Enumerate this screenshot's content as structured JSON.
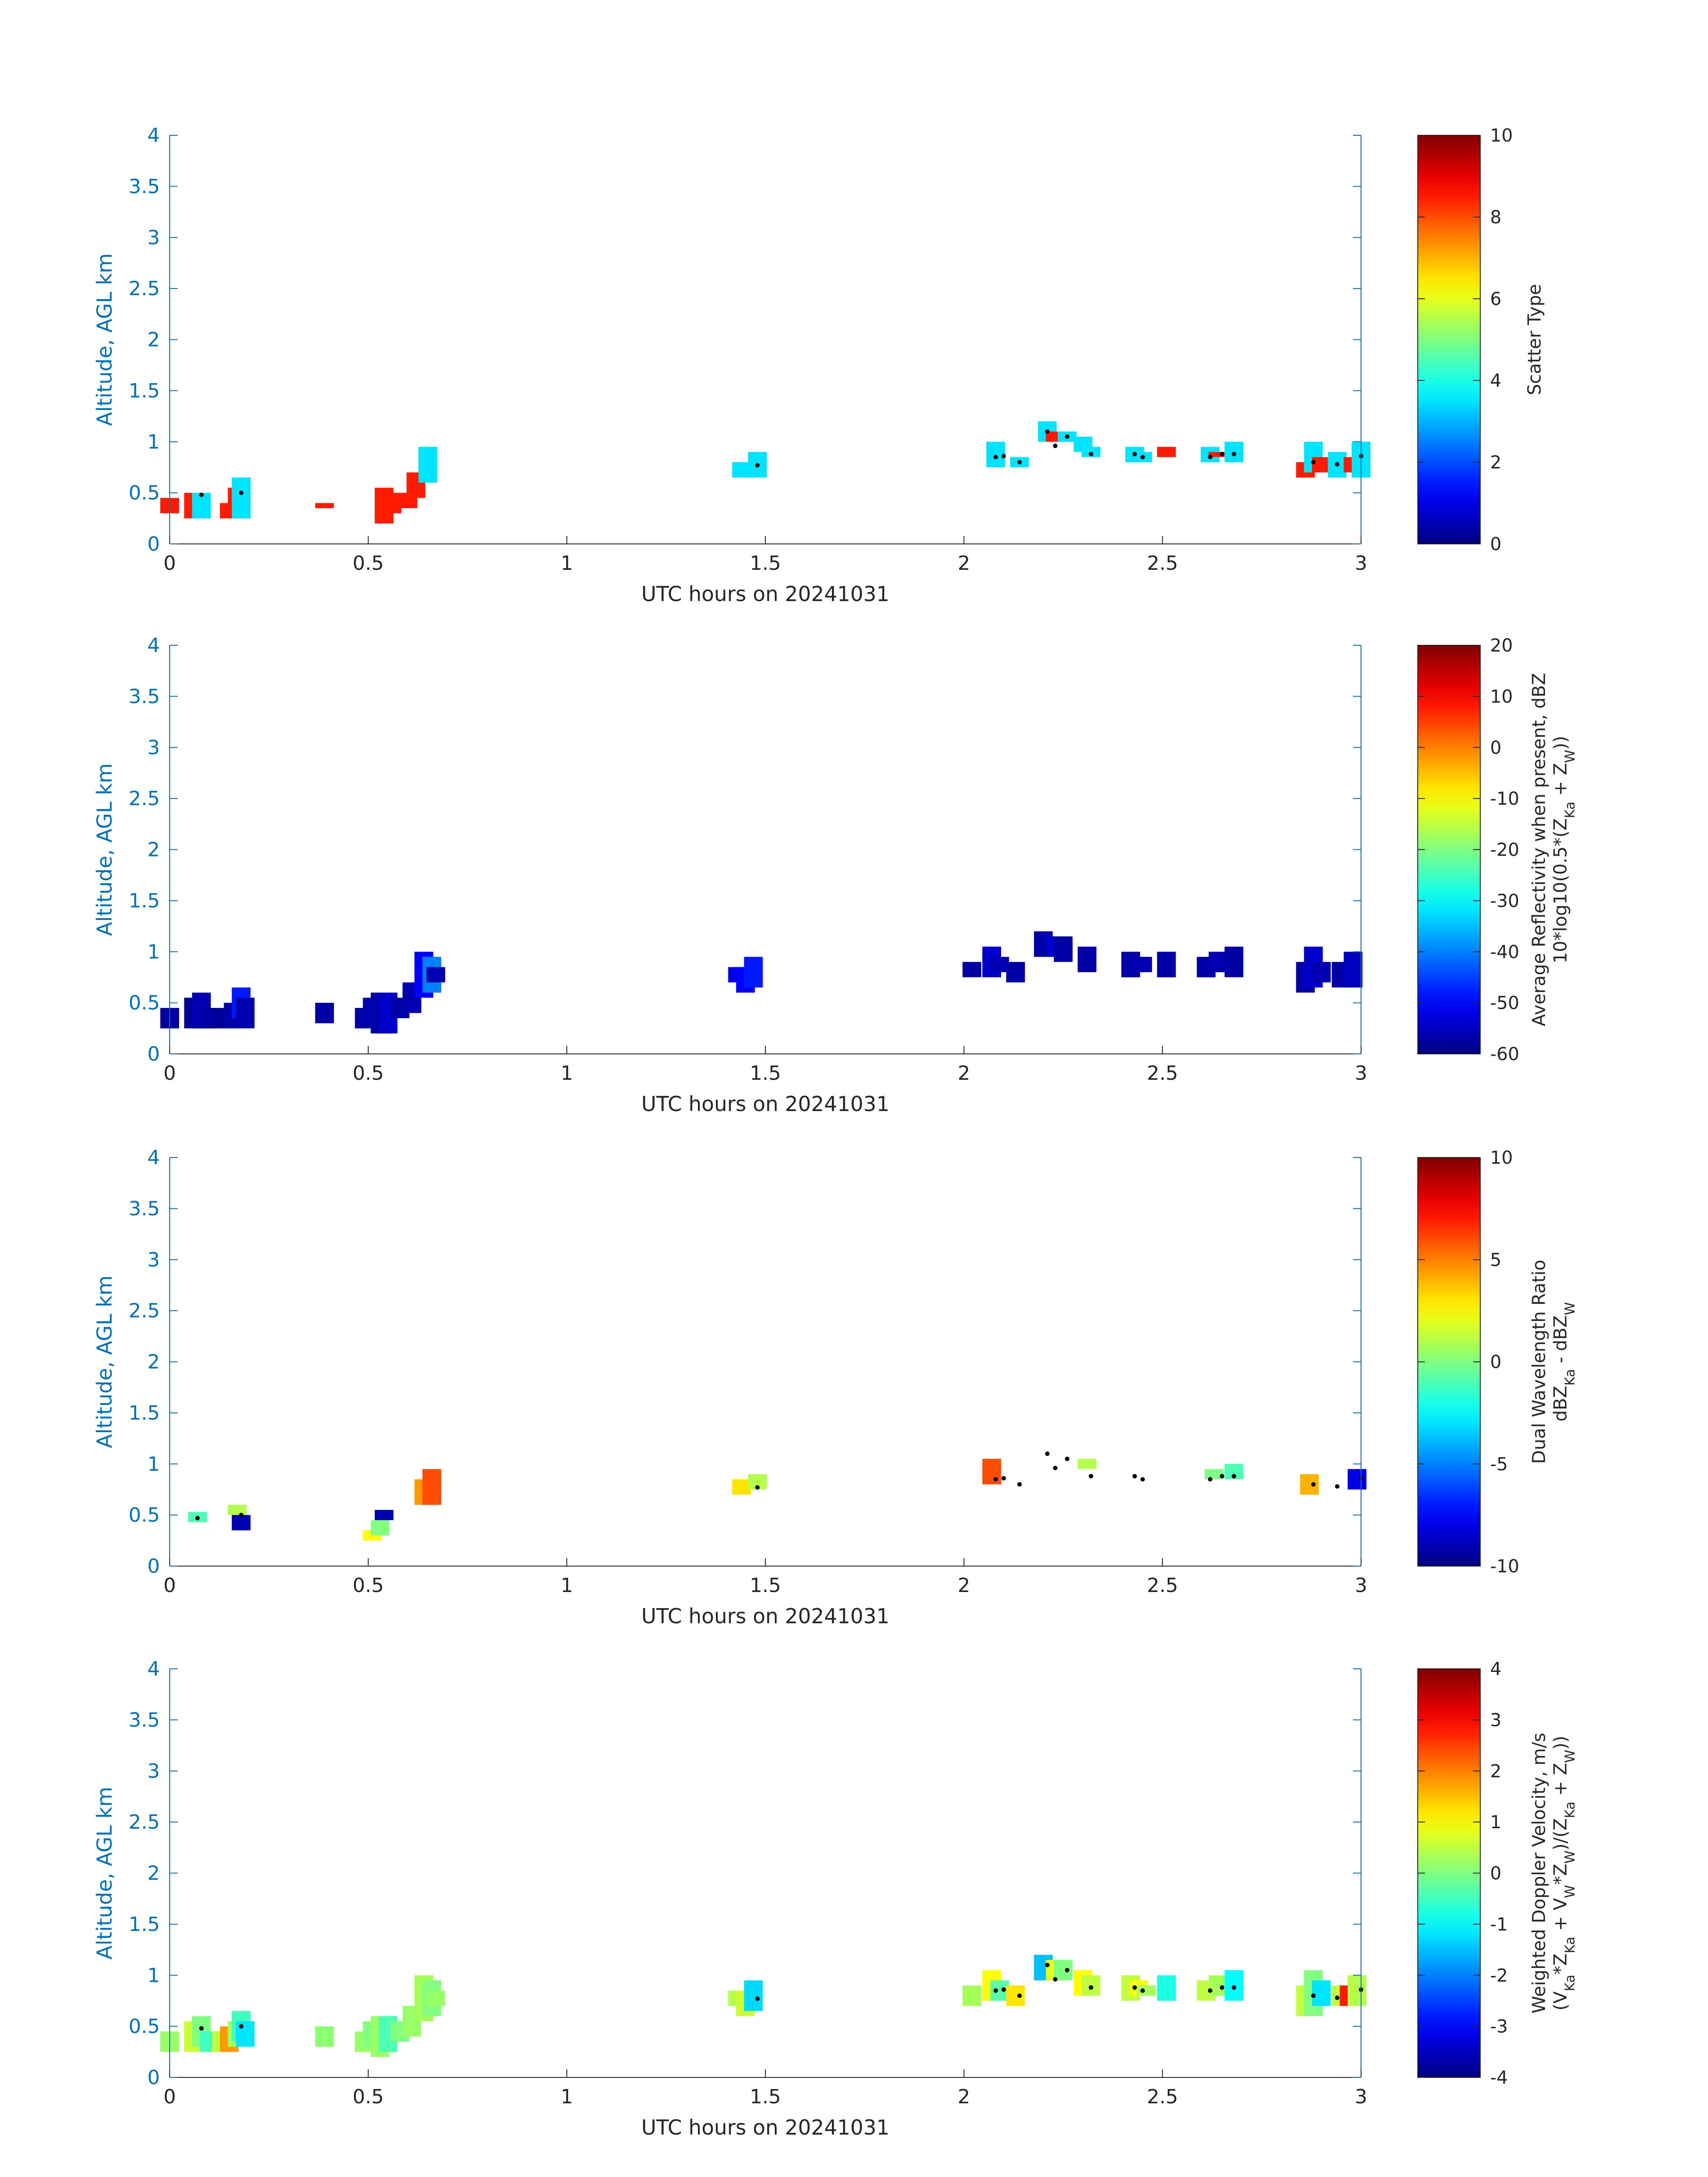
{
  "chart_data": [
    {
      "type": "heatmap",
      "xlabel": "UTC hours on 20241031",
      "ylabel": "Altitude, AGL km",
      "xlim": [
        0,
        3
      ],
      "ylim": [
        0,
        4
      ],
      "xticks": [
        "0",
        "0.5",
        "1",
        "1.5",
        "2",
        "2.5",
        "3"
      ],
      "yticks": [
        "0",
        "0.5",
        "1",
        "1.5",
        "2",
        "2.5",
        "3",
        "3.5",
        "4"
      ],
      "colorbar": {
        "label_lines": [
          "Scatter Type"
        ],
        "range": [
          0,
          10
        ],
        "ticks": [
          "0",
          "2",
          "4",
          "6",
          "8",
          "10"
        ],
        "colormap": "jet"
      },
      "cells": [
        [
          0.0,
          0.3,
          0.4,
          8.5
        ],
        [
          0.0,
          0.4,
          0.45,
          8.5
        ],
        [
          0.06,
          0.25,
          0.5,
          8.5
        ],
        [
          0.08,
          0.25,
          0.5,
          3.5
        ],
        [
          0.15,
          0.25,
          0.4,
          8.5
        ],
        [
          0.17,
          0.25,
          0.55,
          8.5
        ],
        [
          0.18,
          0.25,
          0.65,
          3.5
        ],
        [
          0.39,
          0.35,
          0.4,
          8.5
        ],
        [
          0.54,
          0.2,
          0.55,
          8.5
        ],
        [
          0.56,
          0.3,
          0.5,
          8.5
        ],
        [
          0.6,
          0.35,
          0.5,
          8.5
        ],
        [
          0.62,
          0.45,
          0.7,
          8.5
        ],
        [
          0.65,
          0.6,
          0.95,
          3.5
        ],
        [
          1.44,
          0.65,
          0.8,
          3.5
        ],
        [
          1.48,
          0.65,
          0.9,
          3.5
        ],
        [
          2.08,
          0.75,
          1.0,
          3.5
        ],
        [
          2.14,
          0.75,
          0.85,
          3.5
        ],
        [
          2.21,
          1.0,
          1.2,
          3.5
        ],
        [
          2.23,
          1.0,
          1.1,
          8.5
        ],
        [
          2.26,
          1.0,
          1.1,
          3.5
        ],
        [
          2.3,
          0.9,
          1.05,
          3.5
        ],
        [
          2.32,
          0.85,
          0.95,
          3.5
        ],
        [
          2.43,
          0.8,
          0.95,
          3.5
        ],
        [
          2.45,
          0.8,
          0.9,
          3.5
        ],
        [
          2.51,
          0.85,
          0.95,
          8.5
        ],
        [
          2.62,
          0.8,
          0.95,
          3.5
        ],
        [
          2.64,
          0.85,
          0.9,
          8.5
        ],
        [
          2.68,
          0.8,
          1.0,
          3.5
        ],
        [
          2.86,
          0.65,
          0.8,
          8.5
        ],
        [
          2.88,
          0.7,
          1.0,
          3.5
        ],
        [
          2.9,
          0.7,
          0.85,
          8.5
        ],
        [
          2.94,
          0.65,
          0.9,
          3.5
        ],
        [
          2.98,
          0.7,
          0.85,
          8.5
        ],
        [
          3.0,
          0.65,
          1.0,
          3.5
        ]
      ],
      "markers": [
        [
          0.08,
          0.48
        ],
        [
          0.18,
          0.5
        ],
        [
          1.48,
          0.77
        ],
        [
          2.08,
          0.85
        ],
        [
          2.1,
          0.86
        ],
        [
          2.14,
          0.8
        ],
        [
          2.21,
          1.1
        ],
        [
          2.23,
          0.96
        ],
        [
          2.26,
          1.05
        ],
        [
          2.32,
          0.88
        ],
        [
          2.43,
          0.88
        ],
        [
          2.45,
          0.85
        ],
        [
          2.62,
          0.85
        ],
        [
          2.65,
          0.88
        ],
        [
          2.68,
          0.88
        ],
        [
          2.88,
          0.8
        ],
        [
          2.94,
          0.78
        ],
        [
          3.0,
          0.86
        ]
      ]
    },
    {
      "type": "heatmap",
      "xlabel": "UTC hours on 20241031",
      "ylabel": "Altitude, AGL km",
      "xlim": [
        0,
        3
      ],
      "ylim": [
        0,
        4
      ],
      "xticks": [
        "0",
        "0.5",
        "1",
        "1.5",
        "2",
        "2.5",
        "3"
      ],
      "yticks": [
        "0",
        "0.5",
        "1",
        "1.5",
        "2",
        "2.5",
        "3",
        "3.5",
        "4"
      ],
      "colorbar": {
        "label_lines": [
          "Average Reflectivity when present, dBZ",
          "10*log10(0.5*(Z_Ka + Z_W))"
        ],
        "range": [
          -60,
          20
        ],
        "ticks": [
          "-60",
          "-50",
          "-40",
          "-30",
          "-20",
          "-10",
          "0",
          "10",
          "20"
        ],
        "colormap": "jet"
      },
      "cells": [
        [
          0.0,
          0.25,
          0.45,
          -57
        ],
        [
          0.06,
          0.25,
          0.55,
          -58
        ],
        [
          0.08,
          0.25,
          0.6,
          -56
        ],
        [
          0.1,
          0.25,
          0.45,
          -57
        ],
        [
          0.13,
          0.25,
          0.45,
          -58
        ],
        [
          0.16,
          0.25,
          0.5,
          -57
        ],
        [
          0.18,
          0.35,
          0.65,
          -48
        ],
        [
          0.19,
          0.25,
          0.55,
          -56
        ],
        [
          0.39,
          0.3,
          0.5,
          -57
        ],
        [
          0.49,
          0.25,
          0.45,
          -57
        ],
        [
          0.51,
          0.3,
          0.55,
          -56
        ],
        [
          0.53,
          0.2,
          0.6,
          -57
        ],
        [
          0.55,
          0.2,
          0.6,
          -54
        ],
        [
          0.58,
          0.35,
          0.55,
          -57
        ],
        [
          0.61,
          0.4,
          0.7,
          -56
        ],
        [
          0.64,
          0.55,
          1.0,
          -50
        ],
        [
          0.66,
          0.6,
          0.95,
          -40
        ],
        [
          0.67,
          0.7,
          0.85,
          -56
        ],
        [
          1.43,
          0.7,
          0.85,
          -52
        ],
        [
          1.45,
          0.6,
          0.85,
          -50
        ],
        [
          1.47,
          0.65,
          0.95,
          -48
        ],
        [
          2.02,
          0.75,
          0.9,
          -57
        ],
        [
          2.07,
          0.75,
          1.05,
          -54
        ],
        [
          2.09,
          0.8,
          0.95,
          -56
        ],
        [
          2.13,
          0.7,
          0.9,
          -57
        ],
        [
          2.2,
          0.95,
          1.2,
          -57
        ],
        [
          2.23,
          0.95,
          1.15,
          -54
        ],
        [
          2.25,
          0.9,
          1.15,
          -57
        ],
        [
          2.31,
          0.8,
          1.05,
          -57
        ],
        [
          2.42,
          0.75,
          1.0,
          -57
        ],
        [
          2.45,
          0.8,
          0.95,
          -56
        ],
        [
          2.51,
          0.75,
          1.0,
          -57
        ],
        [
          2.61,
          0.75,
          0.95,
          -57
        ],
        [
          2.64,
          0.8,
          1.0,
          -56
        ],
        [
          2.68,
          0.75,
          1.05,
          -57
        ],
        [
          2.86,
          0.6,
          0.9,
          -57
        ],
        [
          2.88,
          0.65,
          1.05,
          -54
        ],
        [
          2.9,
          0.7,
          0.9,
          -56
        ],
        [
          2.95,
          0.65,
          0.9,
          -57
        ],
        [
          2.98,
          0.65,
          1.0,
          -55
        ]
      ],
      "markers": []
    },
    {
      "type": "heatmap",
      "xlabel": "UTC hours on 20241031",
      "ylabel": "Altitude, AGL km",
      "xlim": [
        0,
        3
      ],
      "ylim": [
        0,
        4
      ],
      "xticks": [
        "0",
        "0.5",
        "1",
        "1.5",
        "2",
        "2.5",
        "3"
      ],
      "yticks": [
        "0",
        "0.5",
        "1",
        "1.5",
        "2",
        "2.5",
        "3",
        "3.5",
        "4"
      ],
      "colorbar": {
        "label_lines": [
          "Dual Wavelength Ratio",
          "dBZ_Ka - dBZ_W"
        ],
        "range": [
          -10,
          10
        ],
        "ticks": [
          "-10",
          "-5",
          "0",
          "5",
          "10"
        ],
        "colormap": "jet"
      },
      "cells": [
        [
          0.07,
          0.43,
          0.53,
          -1
        ],
        [
          0.17,
          0.5,
          0.6,
          1
        ],
        [
          0.18,
          0.35,
          0.5,
          -9
        ],
        [
          0.51,
          0.25,
          0.35,
          2.5
        ],
        [
          0.53,
          0.3,
          0.45,
          0
        ],
        [
          0.54,
          0.45,
          0.55,
          -9
        ],
        [
          0.64,
          0.6,
          0.85,
          4.5
        ],
        [
          0.66,
          0.6,
          0.95,
          6
        ],
        [
          1.44,
          0.7,
          0.85,
          3
        ],
        [
          1.48,
          0.75,
          0.9,
          1
        ],
        [
          2.07,
          0.8,
          1.05,
          6
        ],
        [
          2.31,
          0.95,
          1.05,
          1
        ],
        [
          2.63,
          0.85,
          0.95,
          0
        ],
        [
          2.68,
          0.85,
          1.0,
          -1
        ],
        [
          2.87,
          0.7,
          0.9,
          4
        ],
        [
          2.99,
          0.75,
          0.95,
          -8
        ]
      ],
      "markers": [
        [
          0.07,
          0.47
        ],
        [
          0.18,
          0.5
        ],
        [
          1.48,
          0.77
        ],
        [
          2.08,
          0.85
        ],
        [
          2.1,
          0.86
        ],
        [
          2.14,
          0.8
        ],
        [
          2.21,
          1.1
        ],
        [
          2.23,
          0.96
        ],
        [
          2.26,
          1.05
        ],
        [
          2.32,
          0.88
        ],
        [
          2.43,
          0.88
        ],
        [
          2.45,
          0.85
        ],
        [
          2.62,
          0.85
        ],
        [
          2.65,
          0.88
        ],
        [
          2.68,
          0.88
        ],
        [
          2.88,
          0.8
        ],
        [
          2.94,
          0.78
        ],
        [
          3.0,
          0.86
        ]
      ]
    },
    {
      "type": "heatmap",
      "xlabel": "UTC hours on 20241031",
      "ylabel": "Altitude, AGL km",
      "xlim": [
        0,
        3
      ],
      "ylim": [
        0,
        4
      ],
      "xticks": [
        "0",
        "0.5",
        "1",
        "1.5",
        "2",
        "2.5",
        "3"
      ],
      "yticks": [
        "0",
        "0.5",
        "1",
        "1.5",
        "2",
        "2.5",
        "3",
        "3.5",
        "4"
      ],
      "colorbar": {
        "label_lines": [
          "Weighted Doppler Velocity, m/s",
          "(V_Ka*Z_Ka + V_W*Z_W)/(Z_Ka + Z_W))"
        ],
        "range": [
          -4,
          4
        ],
        "ticks": [
          "-4",
          "-3",
          "-2",
          "-1",
          "0",
          "1",
          "2",
          "3",
          "4"
        ],
        "colormap": "jet"
      },
      "cells": [
        [
          0.0,
          0.25,
          0.45,
          0.2
        ],
        [
          0.06,
          0.25,
          0.55,
          0.6
        ],
        [
          0.08,
          0.3,
          0.6,
          0
        ],
        [
          0.1,
          0.25,
          0.45,
          -0.5
        ],
        [
          0.13,
          0.25,
          0.45,
          0.5
        ],
        [
          0.15,
          0.25,
          0.5,
          1.8
        ],
        [
          0.17,
          0.3,
          0.55,
          0.3
        ],
        [
          0.18,
          0.35,
          0.65,
          -0.5
        ],
        [
          0.19,
          0.3,
          0.55,
          -1.2
        ],
        [
          0.39,
          0.3,
          0.5,
          0.1
        ],
        [
          0.49,
          0.25,
          0.45,
          0.2
        ],
        [
          0.51,
          0.3,
          0.55,
          0
        ],
        [
          0.53,
          0.2,
          0.6,
          0.2
        ],
        [
          0.55,
          0.25,
          0.6,
          -0.4
        ],
        [
          0.58,
          0.35,
          0.55,
          0
        ],
        [
          0.61,
          0.4,
          0.7,
          0.2
        ],
        [
          0.64,
          0.55,
          1.0,
          0.3
        ],
        [
          0.66,
          0.6,
          0.95,
          0
        ],
        [
          0.67,
          0.7,
          0.85,
          0.2
        ],
        [
          1.43,
          0.7,
          0.85,
          0.4
        ],
        [
          1.45,
          0.6,
          0.85,
          0.6
        ],
        [
          1.47,
          0.65,
          0.95,
          -1.3
        ],
        [
          2.02,
          0.7,
          0.9,
          0.3
        ],
        [
          2.07,
          0.75,
          1.05,
          1.0
        ],
        [
          2.09,
          0.75,
          0.95,
          -0.3
        ],
        [
          2.13,
          0.7,
          0.9,
          1.2
        ],
        [
          2.2,
          0.95,
          1.2,
          -1.5
        ],
        [
          2.23,
          0.95,
          1.15,
          0.8
        ],
        [
          2.25,
          0.95,
          1.15,
          0
        ],
        [
          2.3,
          0.8,
          1.05,
          1.0
        ],
        [
          2.32,
          0.8,
          1.0,
          0.5
        ],
        [
          2.42,
          0.75,
          1.0,
          0.5
        ],
        [
          2.44,
          0.8,
          0.95,
          0.9
        ],
        [
          2.46,
          0.8,
          0.9,
          0.3
        ],
        [
          2.51,
          0.75,
          1.0,
          -0.8
        ],
        [
          2.61,
          0.75,
          0.95,
          0.5
        ],
        [
          2.64,
          0.8,
          1.0,
          0.3
        ],
        [
          2.68,
          0.75,
          1.05,
          -1.0
        ],
        [
          2.86,
          0.6,
          0.9,
          0.5
        ],
        [
          2.88,
          0.6,
          1.05,
          0
        ],
        [
          2.9,
          0.7,
          0.95,
          -1.2
        ],
        [
          2.95,
          0.7,
          0.9,
          0.5
        ],
        [
          2.97,
          0.7,
          0.9,
          2.8
        ],
        [
          2.99,
          0.7,
          1.0,
          0.4
        ]
      ],
      "markers": [
        [
          0.08,
          0.48
        ],
        [
          0.18,
          0.5
        ],
        [
          1.48,
          0.77
        ],
        [
          2.08,
          0.85
        ],
        [
          2.1,
          0.86
        ],
        [
          2.14,
          0.8
        ],
        [
          2.21,
          1.1
        ],
        [
          2.23,
          0.96
        ],
        [
          2.26,
          1.05
        ],
        [
          2.32,
          0.88
        ],
        [
          2.43,
          0.88
        ],
        [
          2.45,
          0.85
        ],
        [
          2.62,
          0.85
        ],
        [
          2.65,
          0.88
        ],
        [
          2.68,
          0.88
        ],
        [
          2.88,
          0.8
        ],
        [
          2.94,
          0.78
        ],
        [
          3.0,
          0.86
        ]
      ]
    }
  ]
}
